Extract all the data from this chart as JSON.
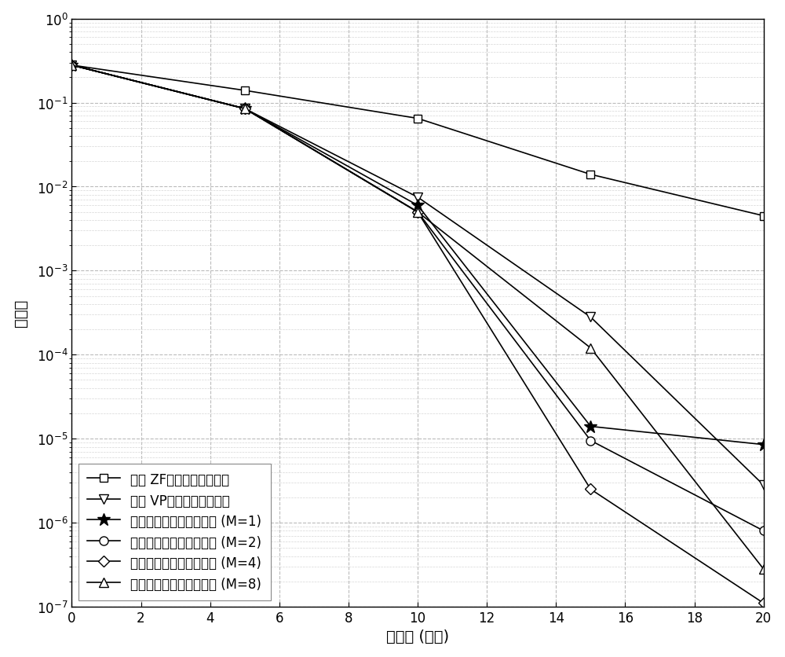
{
  "xlabel": "信噪比 (分贝)",
  "ylabel": "误码率",
  "xlim": [
    0,
    20
  ],
  "ylim_log": [
    -7,
    0
  ],
  "x_ticks": [
    0,
    2,
    4,
    6,
    8,
    10,
    12,
    14,
    16,
    18,
    20
  ],
  "series": [
    {
      "label": "传统 ZF下行信息数据处理",
      "x": [
        0,
        5,
        10,
        15,
        20
      ],
      "y": [
        0.28,
        0.14,
        0.065,
        0.014,
        0.0045
      ],
      "marker": "s",
      "ms": 7
    },
    {
      "label": "传统 VP下行信息数据处理",
      "x": [
        0,
        5,
        10,
        15,
        20
      ],
      "y": [
        0.28,
        0.085,
        0.0075,
        0.00028,
        2.8e-06
      ],
      "marker": "v",
      "ms": 9
    },
    {
      "label": "本发明下行信息数据处理 (M=1)",
      "x": [
        0,
        5,
        10,
        15,
        20
      ],
      "y": [
        0.28,
        0.085,
        0.006,
        1.4e-05,
        8.5e-06
      ],
      "marker": "*",
      "ms": 12
    },
    {
      "label": "本发明下行信息数据处理 (M=2)",
      "x": [
        0,
        5,
        10,
        15,
        20
      ],
      "y": [
        0.28,
        0.085,
        0.005,
        9.5e-06,
        8e-07
      ],
      "marker": "o",
      "ms": 8
    },
    {
      "label": "本发明下行信息数据处理 (M=4)",
      "x": [
        0,
        5,
        10,
        15,
        20
      ],
      "y": [
        0.28,
        0.085,
        0.005,
        2.5e-06,
        1.1e-07
      ],
      "marker": "D",
      "ms": 7
    },
    {
      "label": "本发明下行信息数据处理 (M=8)",
      "x": [
        0,
        5,
        10,
        15,
        20
      ],
      "y": [
        0.28,
        0.085,
        0.005,
        0.00012,
        2.8e-07
      ],
      "marker": "^",
      "ms": 8
    }
  ],
  "background_color": "#ffffff",
  "grid_major_color": "#bbbbbb",
  "grid_minor_color": "#cccccc",
  "legend_fontsize": 12,
  "axis_fontsize": 14,
  "tick_fontsize": 12
}
